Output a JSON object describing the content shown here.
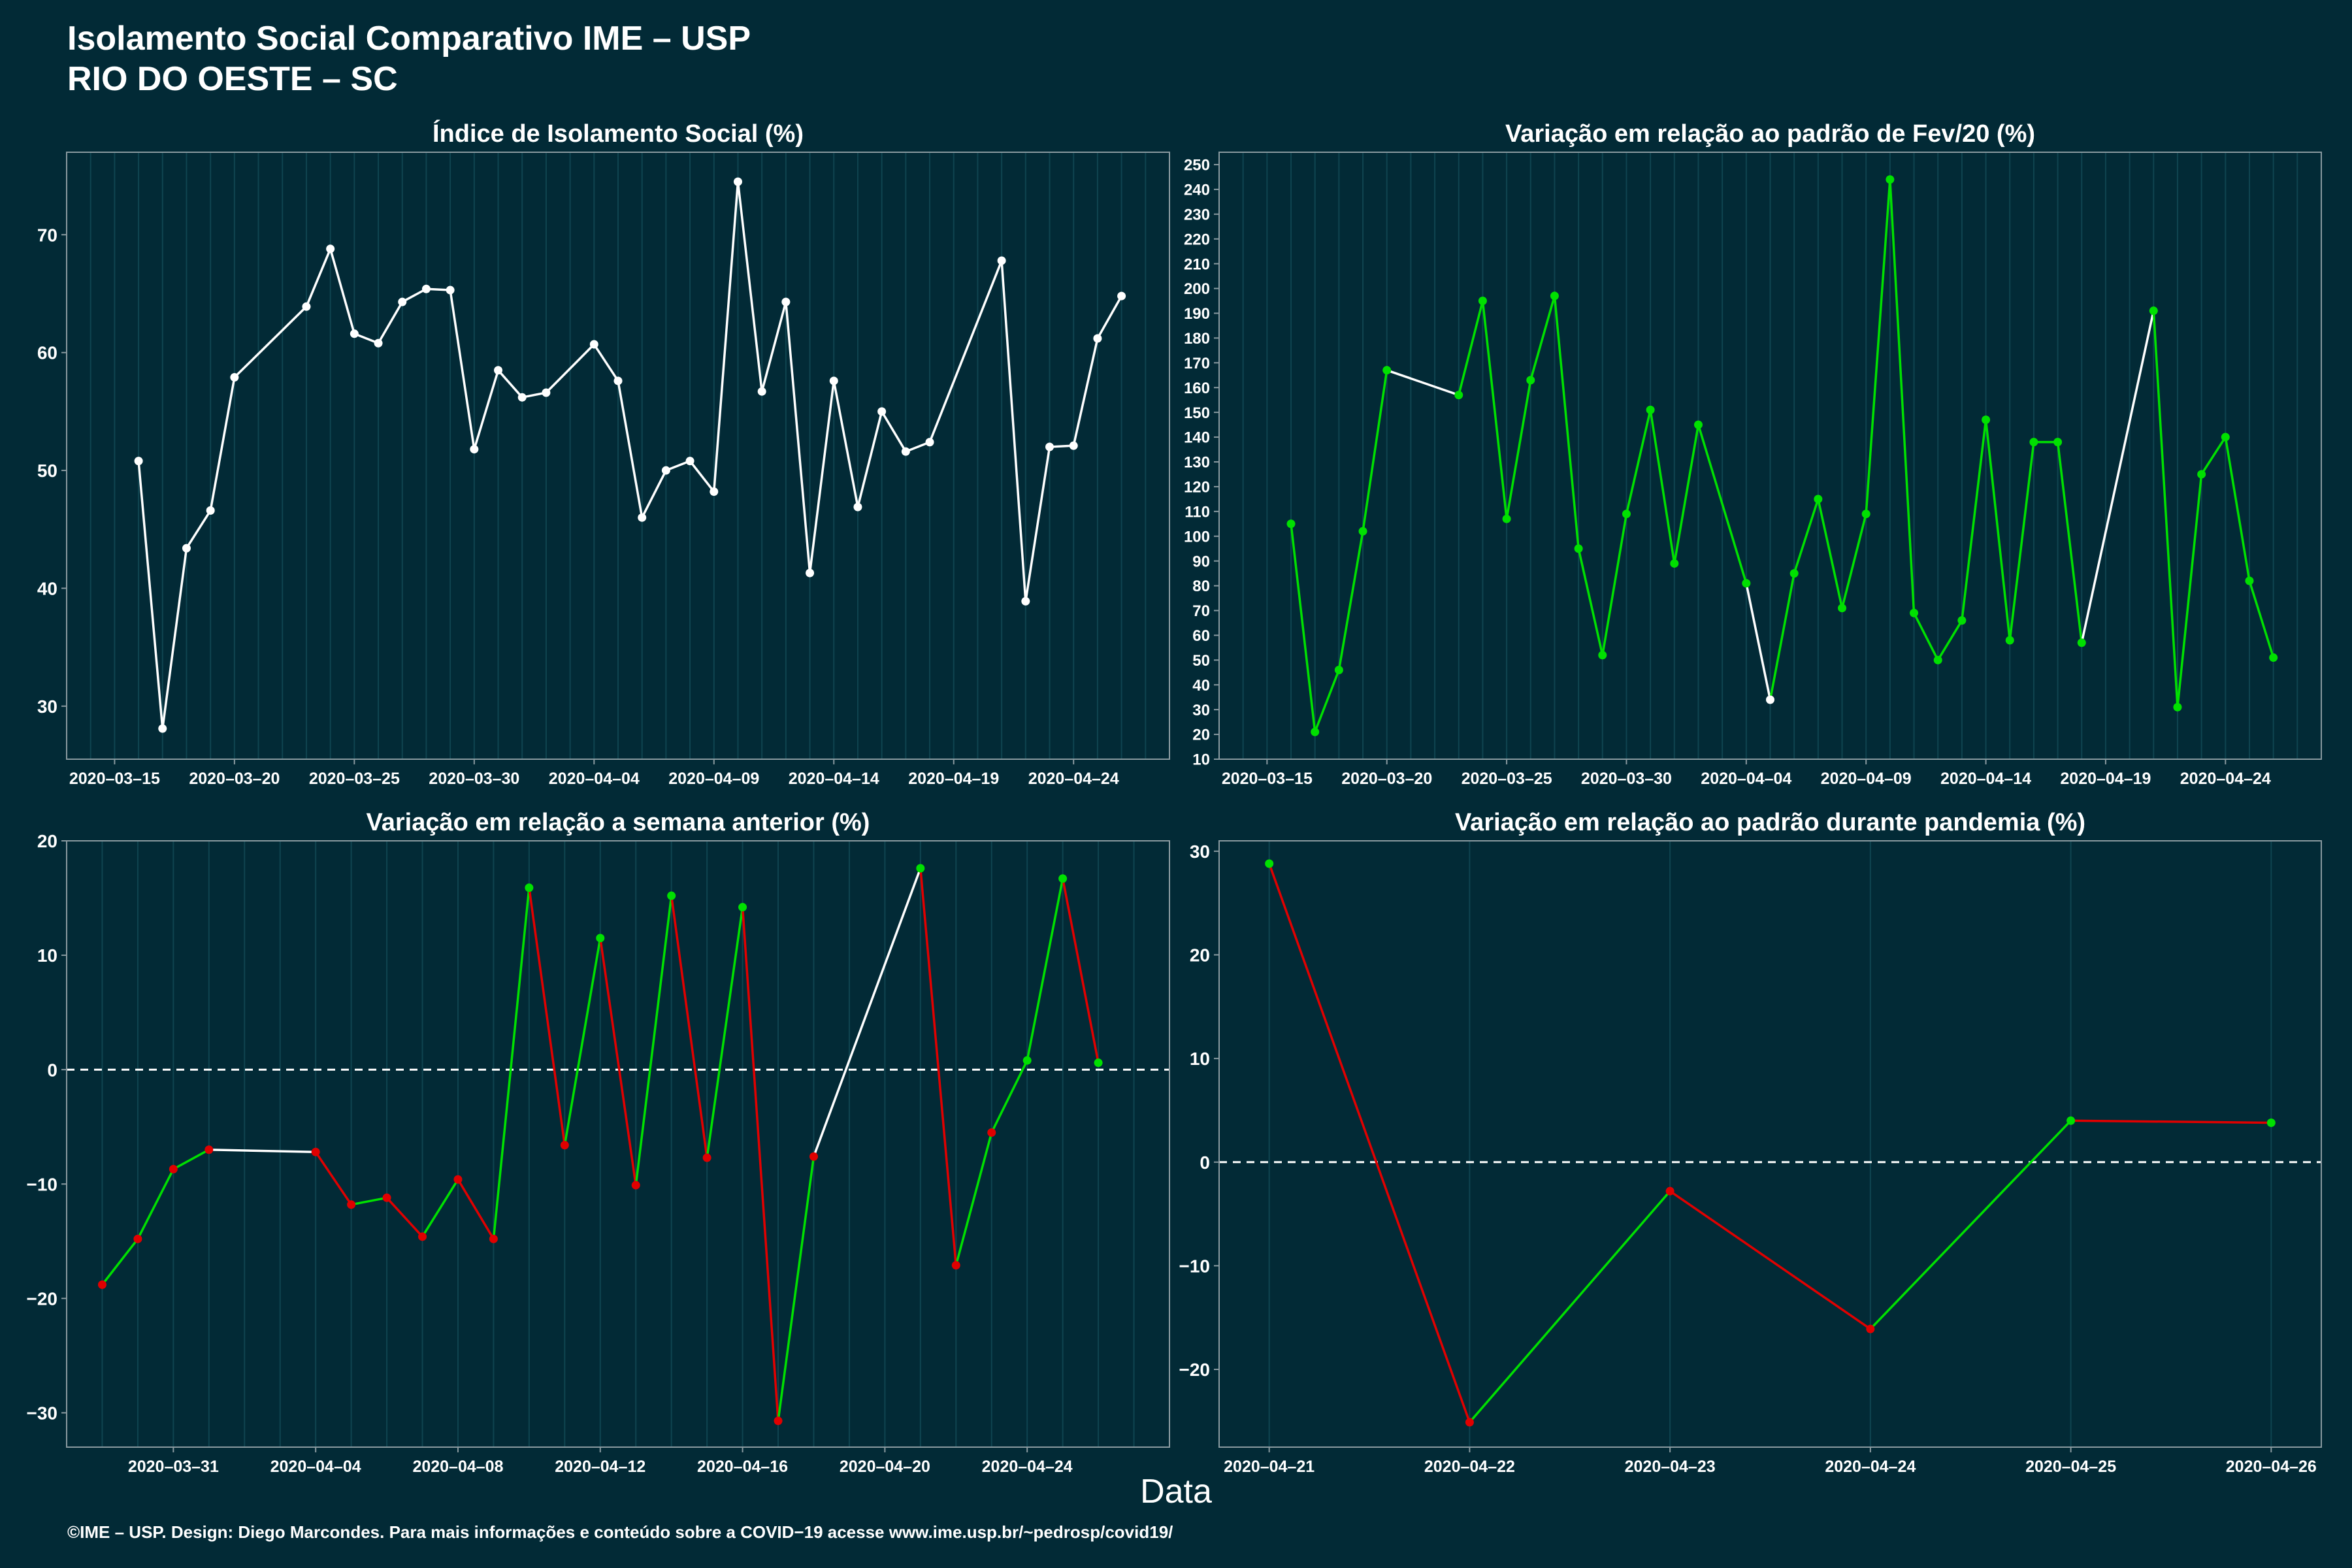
{
  "page": {
    "title_line1": "Isolamento Social Comparativo IME – USP",
    "title_line2": "RIO DO OESTE – SC",
    "x_axis_title": "Data",
    "footer": "©IME – USP. Design: Diego Marcondes. Para mais informações e conteúdo sobre a COVID−19 acesse www.ime.usp.br/~pedrosp/covid19/"
  },
  "colors": {
    "background": "#022a36",
    "neutral": "#ffffff",
    "increase": "#00e000",
    "decrease": "#e00000",
    "grid": "#0f4450"
  },
  "chart_data": [
    {
      "type": "line",
      "title": "Índice de Isolamento Social (%)",
      "xlabel": "",
      "ylabel": "",
      "x_start": "2020-03-13",
      "x_end": "2020-04-28",
      "ylim": [
        25.5,
        77
      ],
      "y_ticks": [
        30,
        40,
        50,
        60,
        70
      ],
      "x_ticks": [
        "2020-03-15",
        "2020-03-20",
        "2020-03-25",
        "2020-03-30",
        "2020-04-04",
        "2020-04-09",
        "2020-04-14",
        "2020-04-19",
        "2020-04-24"
      ],
      "color_mode": "single",
      "dashed_zero": false,
      "points": [
        [
          "2020-03-16",
          50.8
        ],
        [
          "2020-03-17",
          28.1
        ],
        [
          "2020-03-18",
          43.4
        ],
        [
          "2020-03-19",
          46.6
        ],
        [
          "2020-03-20",
          57.9
        ],
        [
          "2020-03-23",
          63.9
        ],
        [
          "2020-03-24",
          68.8
        ],
        [
          "2020-03-25",
          61.6
        ],
        [
          "2020-03-26",
          60.8
        ],
        [
          "2020-03-27",
          64.3
        ],
        [
          "2020-03-28",
          65.4
        ],
        [
          "2020-03-29",
          65.3
        ],
        [
          "2020-03-30",
          51.8
        ],
        [
          "2020-03-31",
          58.5
        ],
        [
          "2020-04-01",
          56.2
        ],
        [
          "2020-04-02",
          56.6
        ],
        [
          "2020-04-04",
          60.7
        ],
        [
          "2020-04-05",
          57.6
        ],
        [
          "2020-04-06",
          46.0
        ],
        [
          "2020-04-07",
          50.0
        ],
        [
          "2020-04-08",
          50.8
        ],
        [
          "2020-04-09",
          48.2
        ],
        [
          "2020-04-10",
          74.5
        ],
        [
          "2020-04-11",
          56.7
        ],
        [
          "2020-04-12",
          64.3
        ],
        [
          "2020-04-13",
          41.3
        ],
        [
          "2020-04-14",
          57.6
        ],
        [
          "2020-04-15",
          46.9
        ],
        [
          "2020-04-16",
          55.0
        ],
        [
          "2020-04-17",
          51.6
        ],
        [
          "2020-04-18",
          52.4
        ],
        [
          "2020-04-21",
          67.8
        ],
        [
          "2020-04-22",
          38.9
        ],
        [
          "2020-04-23",
          52.0
        ],
        [
          "2020-04-24",
          52.1
        ],
        [
          "2020-04-25",
          61.2
        ],
        [
          "2020-04-26",
          64.8
        ]
      ]
    },
    {
      "type": "line",
      "title": "Variação em relação ao padrão de Fev/20 (%)",
      "xlabel": "",
      "ylabel": "",
      "x_start": "2020-03-13",
      "x_end": "2020-04-28",
      "ylim": [
        10,
        255
      ],
      "y_ticks": [
        10,
        20,
        30,
        40,
        50,
        60,
        70,
        80,
        90,
        100,
        110,
        120,
        130,
        140,
        150,
        160,
        170,
        180,
        190,
        200,
        210,
        220,
        230,
        240,
        250
      ],
      "x_ticks": [
        "2020-03-15",
        "2020-03-20",
        "2020-03-25",
        "2020-03-30",
        "2020-04-04",
        "2020-04-09",
        "2020-04-14",
        "2020-04-19",
        "2020-04-24"
      ],
      "color_mode": "fixed",
      "dashed_zero": false,
      "line_colors": [
        "inc",
        "inc",
        "inc",
        "inc",
        "neutral",
        "inc",
        "inc",
        "inc",
        "inc",
        "inc",
        "inc",
        "inc",
        "inc",
        "inc",
        "inc",
        "inc",
        "neutral",
        "inc",
        "inc",
        "inc",
        "inc",
        "inc",
        "inc",
        "inc",
        "inc",
        "inc",
        "inc",
        "inc",
        "inc",
        "inc",
        "neutral",
        "inc",
        "inc",
        "inc",
        "inc",
        "inc"
      ],
      "point_colors": [
        "inc",
        "inc",
        "inc",
        "inc",
        "inc",
        "inc",
        "inc",
        "inc",
        "inc",
        "inc",
        "inc",
        "inc",
        "inc",
        "inc",
        "inc",
        "inc",
        "inc",
        "neutral",
        "inc",
        "inc",
        "inc",
        "inc",
        "inc",
        "inc",
        "inc",
        "inc",
        "inc",
        "inc",
        "inc",
        "inc",
        "inc",
        "inc",
        "inc",
        "inc",
        "inc",
        "inc",
        "inc"
      ],
      "points": [
        [
          "2020-03-16",
          105
        ],
        [
          "2020-03-17",
          21
        ],
        [
          "2020-03-18",
          46
        ],
        [
          "2020-03-19",
          102
        ],
        [
          "2020-03-20",
          167
        ],
        [
          "2020-03-23",
          157
        ],
        [
          "2020-03-24",
          195
        ],
        [
          "2020-03-25",
          107
        ],
        [
          "2020-03-26",
          163
        ],
        [
          "2020-03-27",
          197
        ],
        [
          "2020-03-28",
          95
        ],
        [
          "2020-03-29",
          52
        ],
        [
          "2020-03-30",
          109
        ],
        [
          "2020-03-31",
          151
        ],
        [
          "2020-04-01",
          89
        ],
        [
          "2020-04-02",
          145
        ],
        [
          "2020-04-04",
          81
        ],
        [
          "2020-04-05",
          34
        ],
        [
          "2020-04-06",
          85
        ],
        [
          "2020-04-07",
          115
        ],
        [
          "2020-04-08",
          71
        ],
        [
          "2020-04-09",
          109
        ],
        [
          "2020-04-10",
          244
        ],
        [
          "2020-04-11",
          69
        ],
        [
          "2020-04-12",
          50
        ],
        [
          "2020-04-13",
          66
        ],
        [
          "2020-04-14",
          147
        ],
        [
          "2020-04-15",
          58
        ],
        [
          "2020-04-16",
          138
        ],
        [
          "2020-04-17",
          138
        ],
        [
          "2020-04-18",
          57
        ],
        [
          "2020-04-21",
          191
        ],
        [
          "2020-04-22",
          31
        ],
        [
          "2020-04-23",
          125
        ],
        [
          "2020-04-24",
          140
        ],
        [
          "2020-04-25",
          82
        ],
        [
          "2020-04-26",
          51
        ]
      ]
    },
    {
      "type": "line",
      "title": "Variação em relação a semana anterior (%)",
      "xlabel": "",
      "ylabel": "",
      "x_start": "2020-03-28",
      "x_end": "2020-04-28",
      "ylim": [
        -33,
        20
      ],
      "y_ticks": [
        -30,
        -20,
        -10,
        0,
        10,
        20
      ],
      "x_ticks": [
        "2020-03-31",
        "2020-04-04",
        "2020-04-08",
        "2020-04-12",
        "2020-04-16",
        "2020-04-20",
        "2020-04-24"
      ],
      "color_mode": "sign",
      "dashed_zero": true,
      "neutral_segments": [
        "2020-04-01",
        "2020-04-18"
      ],
      "points": [
        [
          "2020-03-29",
          -18.8
        ],
        [
          "2020-03-30",
          -14.8
        ],
        [
          "2020-03-31",
          -8.7
        ],
        [
          "2020-04-01",
          -7.0
        ],
        [
          "2020-04-04",
          -7.2
        ],
        [
          "2020-04-05",
          -11.8
        ],
        [
          "2020-04-06",
          -11.2
        ],
        [
          "2020-04-07",
          -14.6
        ],
        [
          "2020-04-08",
          -9.6
        ],
        [
          "2020-04-09",
          -14.8
        ],
        [
          "2020-04-10",
          15.9
        ],
        [
          "2020-04-11",
          -6.6
        ],
        [
          "2020-04-12",
          11.5
        ],
        [
          "2020-04-13",
          -10.1
        ],
        [
          "2020-04-14",
          15.2
        ],
        [
          "2020-04-15",
          -7.7
        ],
        [
          "2020-04-16",
          14.2
        ],
        [
          "2020-04-17",
          -30.7
        ],
        [
          "2020-04-18",
          -7.6
        ],
        [
          "2020-04-21",
          17.6
        ],
        [
          "2020-04-22",
          -17.1
        ],
        [
          "2020-04-23",
          -5.5
        ],
        [
          "2020-04-24",
          0.8
        ],
        [
          "2020-04-25",
          16.7
        ],
        [
          "2020-04-26",
          0.6
        ]
      ]
    },
    {
      "type": "line",
      "title": "Variação em relação ao padrão durante pandemia (%)",
      "xlabel": "",
      "ylabel": "",
      "x_start": "2020-04-21",
      "x_end": "2020-04-26",
      "x_pad": 0.25,
      "ylim": [
        -27.5,
        31
      ],
      "y_ticks": [
        -20,
        -10,
        0,
        10,
        20,
        30
      ],
      "x_ticks": [
        "2020-04-21",
        "2020-04-22",
        "2020-04-23",
        "2020-04-24",
        "2020-04-25",
        "2020-04-26"
      ],
      "color_mode": "sign",
      "dashed_zero": true,
      "neutral_segments": [],
      "points": [
        [
          "2020-04-21",
          28.8
        ],
        [
          "2020-04-22",
          -25.1
        ],
        [
          "2020-04-23",
          -2.8
        ],
        [
          "2020-04-24",
          -16.1
        ],
        [
          "2020-04-25",
          4.0
        ],
        [
          "2020-04-26",
          3.8
        ]
      ]
    }
  ]
}
